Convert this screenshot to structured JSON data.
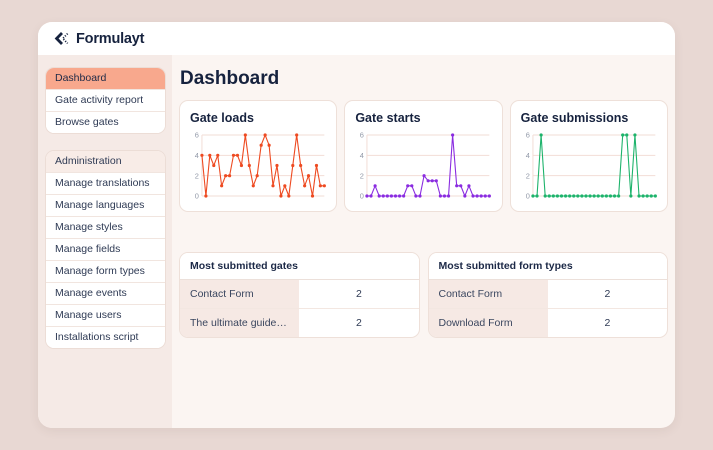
{
  "app": {
    "logo_text": "Formulayt"
  },
  "page": {
    "title": "Dashboard"
  },
  "sidebar": {
    "main_items": [
      {
        "label": "Dashboard",
        "active": true
      },
      {
        "label": "Gate activity report",
        "active": false
      },
      {
        "label": "Browse gates",
        "active": false
      }
    ],
    "admin": {
      "header": "Administration",
      "items": [
        "Manage translations",
        "Manage languages",
        "Manage styles",
        "Manage fields",
        "Manage form types",
        "Manage events",
        "Manage users",
        "Installations script"
      ]
    }
  },
  "chart_data": [
    {
      "type": "line",
      "title": "Gate loads",
      "color": "#ee4a21",
      "yticks": [
        0,
        2,
        4,
        6
      ],
      "ylim": [
        0,
        6
      ],
      "grid": true,
      "legend": "none",
      "values": [
        4,
        0,
        4,
        3,
        4,
        1,
        2,
        2,
        4,
        4,
        3,
        6,
        3,
        1,
        2,
        5,
        6,
        5,
        1,
        3,
        0,
        1,
        0,
        3,
        6,
        3,
        1,
        2,
        0,
        3,
        1,
        1
      ]
    },
    {
      "type": "line",
      "title": "Gate starts",
      "color": "#8a2be0",
      "yticks": [
        0,
        2,
        4,
        6
      ],
      "ylim": [
        0,
        6
      ],
      "grid": true,
      "legend": "none",
      "values": [
        0,
        0,
        1,
        0,
        0,
        0,
        0,
        0,
        0,
        0,
        1,
        1,
        0,
        0,
        2,
        1.5,
        1.5,
        1.5,
        0,
        0,
        0,
        6,
        1,
        1,
        0,
        1,
        0,
        0,
        0,
        0,
        0
      ]
    },
    {
      "type": "line",
      "title": "Gate submissions",
      "color": "#1db36b",
      "yticks": [
        0,
        2,
        4,
        6
      ],
      "ylim": [
        0,
        6
      ],
      "grid": true,
      "legend": "none",
      "values": [
        0,
        0,
        6,
        0,
        0,
        0,
        0,
        0,
        0,
        0,
        0,
        0,
        0,
        0,
        0,
        0,
        0,
        0,
        0,
        0,
        0,
        0,
        6,
        6,
        0,
        6,
        0,
        0,
        0,
        0,
        0
      ]
    }
  ],
  "tables": [
    {
      "title": "Most submitted gates",
      "rows": [
        {
          "label": "Contact Form",
          "value": "2"
        },
        {
          "label": "The ultimate guide to progre…",
          "value": "2"
        }
      ]
    },
    {
      "title": "Most submitted form types",
      "rows": [
        {
          "label": "Contact Form",
          "value": "2"
        },
        {
          "label": "Download Form",
          "value": "2"
        }
      ]
    }
  ],
  "colors": {
    "outer_bg": "#e8d8d3",
    "window_bg": "#fbf5f2",
    "sidebar_bg": "#f5eae6",
    "active_item_bg": "#f8a88d",
    "navy_text": "#16223e",
    "grid_line": "#f2ddd6",
    "tick_text": "#9299a8",
    "table_label_bg": "#f6e9e4",
    "loads_line": "#ee4a21",
    "starts_line": "#8a2be0",
    "submissions_line": "#1db36b"
  }
}
